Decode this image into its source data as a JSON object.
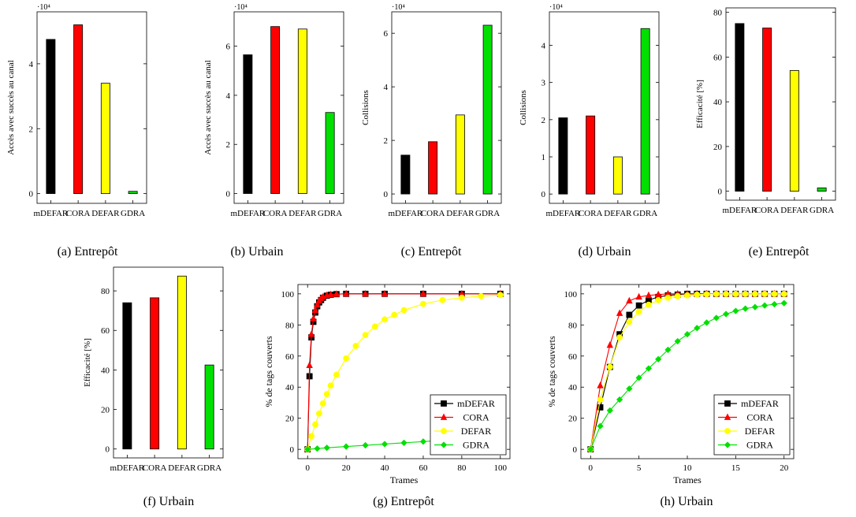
{
  "chart_data": [
    {
      "id": "a",
      "type": "bar",
      "caption": "(a) Entrepôt",
      "ylabel": "Accès avec succès au canal",
      "multiplier": "·10⁴",
      "categories": [
        "mDEFAR",
        "CORA",
        "DEFAR",
        "GDRA"
      ],
      "values": [
        4.75,
        5.2,
        3.4,
        0.07
      ],
      "colors": [
        "#000000",
        "#ff0000",
        "#ffff00",
        "#00e000"
      ],
      "ylim": [
        -0.3,
        5.6
      ],
      "yticks": [
        0,
        2,
        4
      ]
    },
    {
      "id": "b",
      "type": "bar",
      "caption": "(b) Urbain",
      "ylabel": "Accès avec succès au canal",
      "multiplier": "·10⁴",
      "categories": [
        "mDEFAR",
        "CORA",
        "DEFAR",
        "GDRA"
      ],
      "values": [
        5.65,
        6.8,
        6.7,
        3.3
      ],
      "colors": [
        "#000000",
        "#ff0000",
        "#ffff00",
        "#00e000"
      ],
      "ylim": [
        -0.4,
        7.4
      ],
      "yticks": [
        0,
        2,
        4,
        6
      ]
    },
    {
      "id": "c",
      "type": "bar",
      "caption": "(c) Entrepôt",
      "ylabel": "Collisions",
      "multiplier": "·10⁴",
      "categories": [
        "mDEFAR",
        "CORA",
        "DEFAR",
        "GDRA"
      ],
      "values": [
        1.45,
        1.95,
        2.95,
        6.3
      ],
      "colors": [
        "#000000",
        "#ff0000",
        "#ffff00",
        "#00e000"
      ],
      "ylim": [
        -0.35,
        6.8
      ],
      "yticks": [
        0,
        2,
        4,
        6
      ]
    },
    {
      "id": "d",
      "type": "bar",
      "caption": "(d) Urbain",
      "ylabel": "Collisions",
      "multiplier": "·10⁴",
      "categories": [
        "mDEFAR",
        "CORA",
        "DEFAR",
        "GDRA"
      ],
      "values": [
        2.05,
        2.1,
        1.0,
        4.45
      ],
      "colors": [
        "#000000",
        "#ff0000",
        "#ffff00",
        "#00e000"
      ],
      "ylim": [
        -0.25,
        4.9
      ],
      "yticks": [
        0,
        1,
        2,
        3,
        4
      ]
    },
    {
      "id": "e",
      "type": "bar",
      "caption": "(e) Entrepôt",
      "ylabel": "Efficacité [%]",
      "multiplier": "",
      "categories": [
        "mDEFAR",
        "CORA",
        "DEFAR",
        "GDRA"
      ],
      "values": [
        75,
        73,
        54,
        1.5
      ],
      "colors": [
        "#000000",
        "#ff0000",
        "#ffff00",
        "#00e000"
      ],
      "ylim": [
        -4,
        82
      ],
      "yticks": [
        0,
        20,
        40,
        60,
        80
      ]
    },
    {
      "id": "f",
      "type": "bar",
      "caption": "(f) Urbain",
      "ylabel": "Efficacité [%]",
      "multiplier": "",
      "categories": [
        "mDEFAR",
        "CORA",
        "DEFAR",
        "GDRA"
      ],
      "values": [
        74,
        76.5,
        87.5,
        42.5
      ],
      "colors": [
        "#000000",
        "#ff0000",
        "#ffff00",
        "#00e000"
      ],
      "ylim": [
        -4.5,
        92
      ],
      "yticks": [
        0,
        20,
        40,
        60,
        80
      ]
    },
    {
      "id": "g",
      "type": "line",
      "caption": "(g) Entrepôt",
      "xlabel": "Trames",
      "ylabel": "% de tags couverts",
      "xlim": [
        -5,
        105
      ],
      "ylim": [
        -6,
        106
      ],
      "xticks": [
        0,
        20,
        40,
        60,
        80,
        100
      ],
      "yticks": [
        0,
        20,
        40,
        60,
        80,
        100
      ],
      "legend_position": "bottom-right",
      "series": [
        {
          "name": "mDEFAR",
          "color": "#000000",
          "marker": "square",
          "x": [
            0,
            1,
            2,
            3,
            4,
            5,
            6,
            7,
            8,
            10,
            12,
            15,
            20,
            30,
            40,
            60,
            80,
            100
          ],
          "y": [
            0,
            47,
            72,
            82,
            88,
            92,
            94.5,
            96,
            97.5,
            98.8,
            99.4,
            99.8,
            100,
            100,
            100,
            100,
            100,
            100
          ]
        },
        {
          "name": "CORA",
          "color": "#ff0000",
          "marker": "triangle",
          "x": [
            0,
            1,
            2,
            3,
            4,
            5,
            6,
            7,
            8,
            10,
            12,
            15,
            20,
            30,
            40,
            60,
            80,
            100
          ],
          "y": [
            0,
            54,
            74,
            84,
            89.5,
            93,
            95.5,
            97,
            98,
            99,
            99.5,
            99.8,
            100,
            100,
            100,
            100,
            100,
            100
          ]
        },
        {
          "name": "DEFAR",
          "color": "#ffff00",
          "marker": "circle",
          "x": [
            0,
            2,
            4,
            6,
            8,
            10,
            12,
            15,
            20,
            25,
            30,
            35,
            40,
            45,
            50,
            60,
            70,
            80,
            90,
            100
          ],
          "y": [
            0,
            8.5,
            16,
            23,
            29.5,
            35.5,
            41,
            48,
            58.5,
            66.5,
            73.5,
            79,
            83.5,
            86.5,
            89.5,
            93.5,
            96,
            97.5,
            98.5,
            99.3
          ]
        },
        {
          "name": "GDRA",
          "color": "#00e000",
          "marker": "diamond",
          "x": [
            0,
            5,
            10,
            20,
            30,
            40,
            50,
            60,
            70,
            80,
            90,
            100
          ],
          "y": [
            0,
            0.5,
            1,
            1.8,
            2.6,
            3.4,
            4.2,
            5,
            5.8,
            6.6,
            7.4,
            8.2
          ]
        }
      ]
    },
    {
      "id": "h",
      "type": "line",
      "caption": "(h) Urbain",
      "xlabel": "Trames",
      "ylabel": "% de tags couverts",
      "xlim": [
        -1,
        21
      ],
      "ylim": [
        -6,
        106
      ],
      "xticks": [
        0,
        5,
        10,
        15,
        20
      ],
      "yticks": [
        0,
        20,
        40,
        60,
        80,
        100
      ],
      "legend_position": "bottom-right",
      "series": [
        {
          "name": "mDEFAR",
          "color": "#000000",
          "marker": "square",
          "x": [
            0,
            1,
            2,
            3,
            4,
            5,
            6,
            7,
            8,
            9,
            10,
            11,
            12,
            13,
            14,
            15,
            16,
            17,
            18,
            19,
            20
          ],
          "y": [
            0,
            27,
            53,
            74,
            86.5,
            92.5,
            96,
            98,
            99,
            99.5,
            100,
            100,
            100,
            100,
            100,
            100,
            100,
            100,
            100,
            100,
            100
          ]
        },
        {
          "name": "CORA",
          "color": "#ff0000",
          "marker": "triangle",
          "x": [
            0,
            1,
            2,
            3,
            4,
            5,
            6,
            7,
            8,
            9,
            10,
            11,
            12,
            13,
            14,
            15,
            16,
            17,
            18,
            19,
            20
          ],
          "y": [
            0,
            41,
            67,
            87.5,
            95.5,
            98,
            99,
            99.5,
            100,
            100,
            100,
            100,
            100,
            100,
            100,
            100,
            100,
            100,
            100,
            100,
            100
          ]
        },
        {
          "name": "DEFAR",
          "color": "#ffff00",
          "marker": "circle",
          "x": [
            0,
            1,
            2,
            3,
            4,
            5,
            6,
            7,
            8,
            9,
            10,
            11,
            12,
            13,
            14,
            15,
            16,
            17,
            18,
            19,
            20
          ],
          "y": [
            0,
            32,
            53,
            72,
            82,
            88.5,
            93,
            96,
            97.5,
            98.5,
            99,
            99.5,
            99.8,
            100,
            100,
            100,
            100,
            100,
            100,
            100,
            100
          ]
        },
        {
          "name": "GDRA",
          "color": "#00e000",
          "marker": "diamond",
          "x": [
            0,
            1,
            2,
            3,
            4,
            5,
            6,
            7,
            8,
            9,
            10,
            11,
            12,
            13,
            14,
            15,
            16,
            17,
            18,
            19,
            20
          ],
          "y": [
            0,
            15,
            25,
            32,
            39,
            46,
            52,
            58,
            64,
            69.5,
            74,
            78,
            81.5,
            84.5,
            87,
            89,
            90.5,
            91.5,
            92.5,
            93.3,
            94
          ]
        }
      ]
    }
  ]
}
